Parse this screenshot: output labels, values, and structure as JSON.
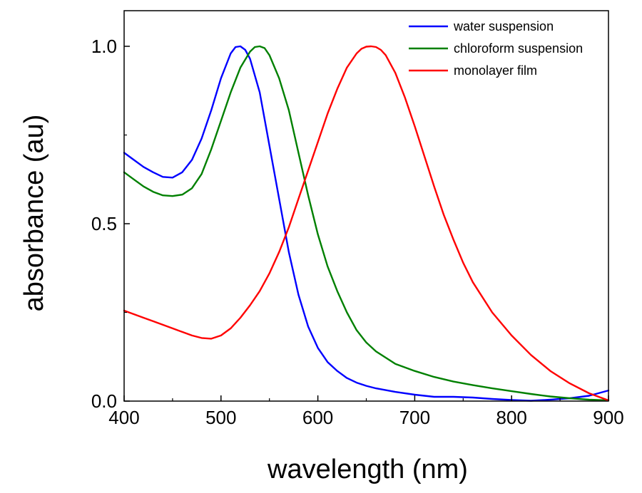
{
  "chart_data": {
    "type": "line",
    "title": "",
    "xlabel": "wavelength (nm)",
    "ylabel": "absorbance (au)",
    "xlim": [
      400,
      900
    ],
    "ylim": [
      0,
      1.1
    ],
    "xticks": [
      400,
      500,
      600,
      700,
      800,
      900
    ],
    "xtick_labels": [
      "400",
      "500",
      "600",
      "700",
      "800",
      "900"
    ],
    "yticks": [
      0.0,
      0.5,
      1.0
    ],
    "ytick_labels": [
      "0.0",
      "0.5",
      "1.0"
    ],
    "grid": false,
    "legend_position": "top-right",
    "series": [
      {
        "name": "water suspension",
        "color": "#0000ff",
        "x": [
          400,
          410,
          420,
          430,
          440,
          450,
          460,
          470,
          480,
          490,
          500,
          510,
          515,
          520,
          525,
          530,
          540,
          550,
          560,
          570,
          580,
          590,
          600,
          610,
          620,
          630,
          640,
          650,
          660,
          680,
          700,
          720,
          740,
          760,
          780,
          800,
          820,
          840,
          860,
          880,
          900
        ],
        "y": [
          0.7,
          0.68,
          0.66,
          0.645,
          0.632,
          0.63,
          0.645,
          0.68,
          0.74,
          0.82,
          0.91,
          0.98,
          0.998,
          1.0,
          0.99,
          0.965,
          0.87,
          0.72,
          0.57,
          0.42,
          0.3,
          0.21,
          0.15,
          0.11,
          0.085,
          0.065,
          0.052,
          0.043,
          0.036,
          0.026,
          0.018,
          0.012,
          0.012,
          0.01,
          0.006,
          0.003,
          0.001,
          0.004,
          0.008,
          0.015,
          0.03
        ]
      },
      {
        "name": "chloroform suspension",
        "color": "#008000",
        "x": [
          400,
          410,
          420,
          430,
          440,
          450,
          460,
          470,
          480,
          490,
          500,
          510,
          520,
          530,
          535,
          540,
          545,
          550,
          560,
          570,
          580,
          590,
          600,
          610,
          620,
          630,
          640,
          650,
          660,
          680,
          700,
          720,
          740,
          760,
          780,
          800,
          820,
          840,
          860,
          880,
          900
        ],
        "y": [
          0.645,
          0.625,
          0.605,
          0.59,
          0.58,
          0.578,
          0.582,
          0.6,
          0.64,
          0.71,
          0.79,
          0.87,
          0.94,
          0.985,
          0.998,
          1.0,
          0.995,
          0.975,
          0.91,
          0.82,
          0.7,
          0.58,
          0.47,
          0.38,
          0.31,
          0.25,
          0.2,
          0.165,
          0.14,
          0.105,
          0.085,
          0.068,
          0.055,
          0.045,
          0.036,
          0.028,
          0.02,
          0.013,
          0.008,
          0.004,
          0.002
        ]
      },
      {
        "name": "monolayer film",
        "color": "#ff0000",
        "x": [
          400,
          410,
          420,
          430,
          440,
          450,
          460,
          470,
          480,
          490,
          500,
          510,
          520,
          530,
          540,
          550,
          560,
          570,
          580,
          590,
          600,
          610,
          620,
          630,
          640,
          645,
          650,
          655,
          660,
          665,
          670,
          680,
          690,
          700,
          710,
          720,
          730,
          740,
          750,
          760,
          780,
          800,
          820,
          840,
          860,
          880,
          900
        ],
        "y": [
          0.255,
          0.245,
          0.235,
          0.225,
          0.215,
          0.205,
          0.195,
          0.185,
          0.178,
          0.176,
          0.185,
          0.205,
          0.235,
          0.27,
          0.31,
          0.36,
          0.42,
          0.49,
          0.57,
          0.65,
          0.73,
          0.81,
          0.88,
          0.94,
          0.98,
          0.993,
          0.999,
          1.0,
          0.998,
          0.99,
          0.975,
          0.925,
          0.855,
          0.775,
          0.69,
          0.605,
          0.525,
          0.455,
          0.39,
          0.335,
          0.25,
          0.185,
          0.13,
          0.085,
          0.05,
          0.022,
          0.002
        ]
      }
    ]
  }
}
